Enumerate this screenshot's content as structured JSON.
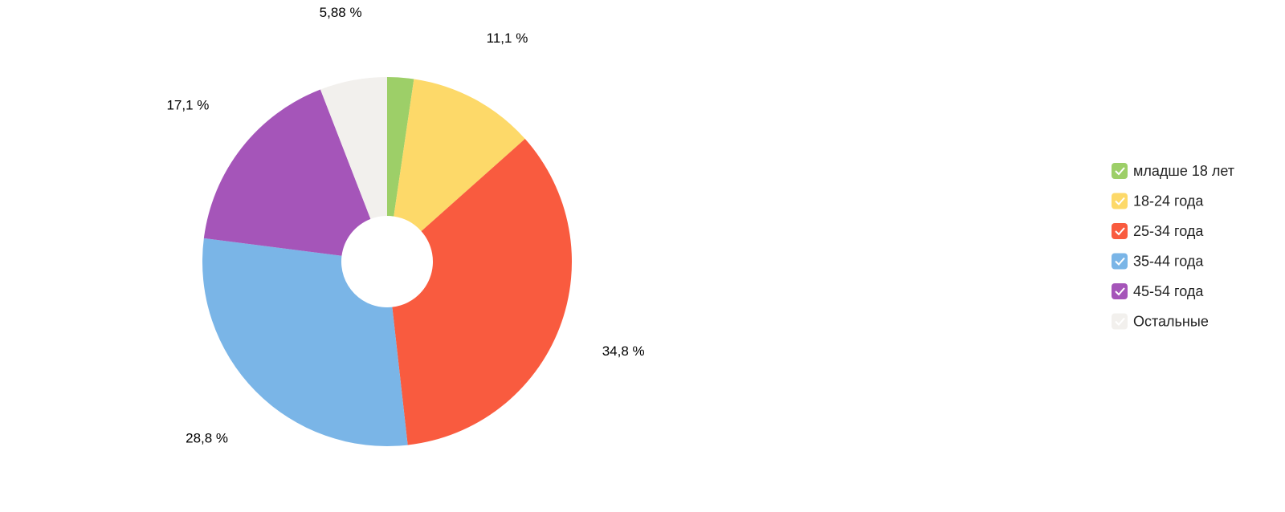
{
  "chart_data": {
    "type": "pie",
    "categories": [
      "младше 18 лет",
      "18-24 года",
      "25-34 года",
      "35-44 года",
      "45-54 года",
      "Остальные"
    ],
    "values": [
      2.32,
      11.1,
      34.8,
      28.8,
      17.1,
      5.88
    ],
    "value_labels": [
      null,
      "11,1 %",
      "34,8 %",
      "28,8 %",
      "17,1 %",
      "5,88 %"
    ],
    "colors": [
      "#9dcf68",
      "#fdd969",
      "#f95b3f",
      "#7ab5e7",
      "#a555b9",
      "#f2f0ed"
    ],
    "legend": "right"
  }
}
